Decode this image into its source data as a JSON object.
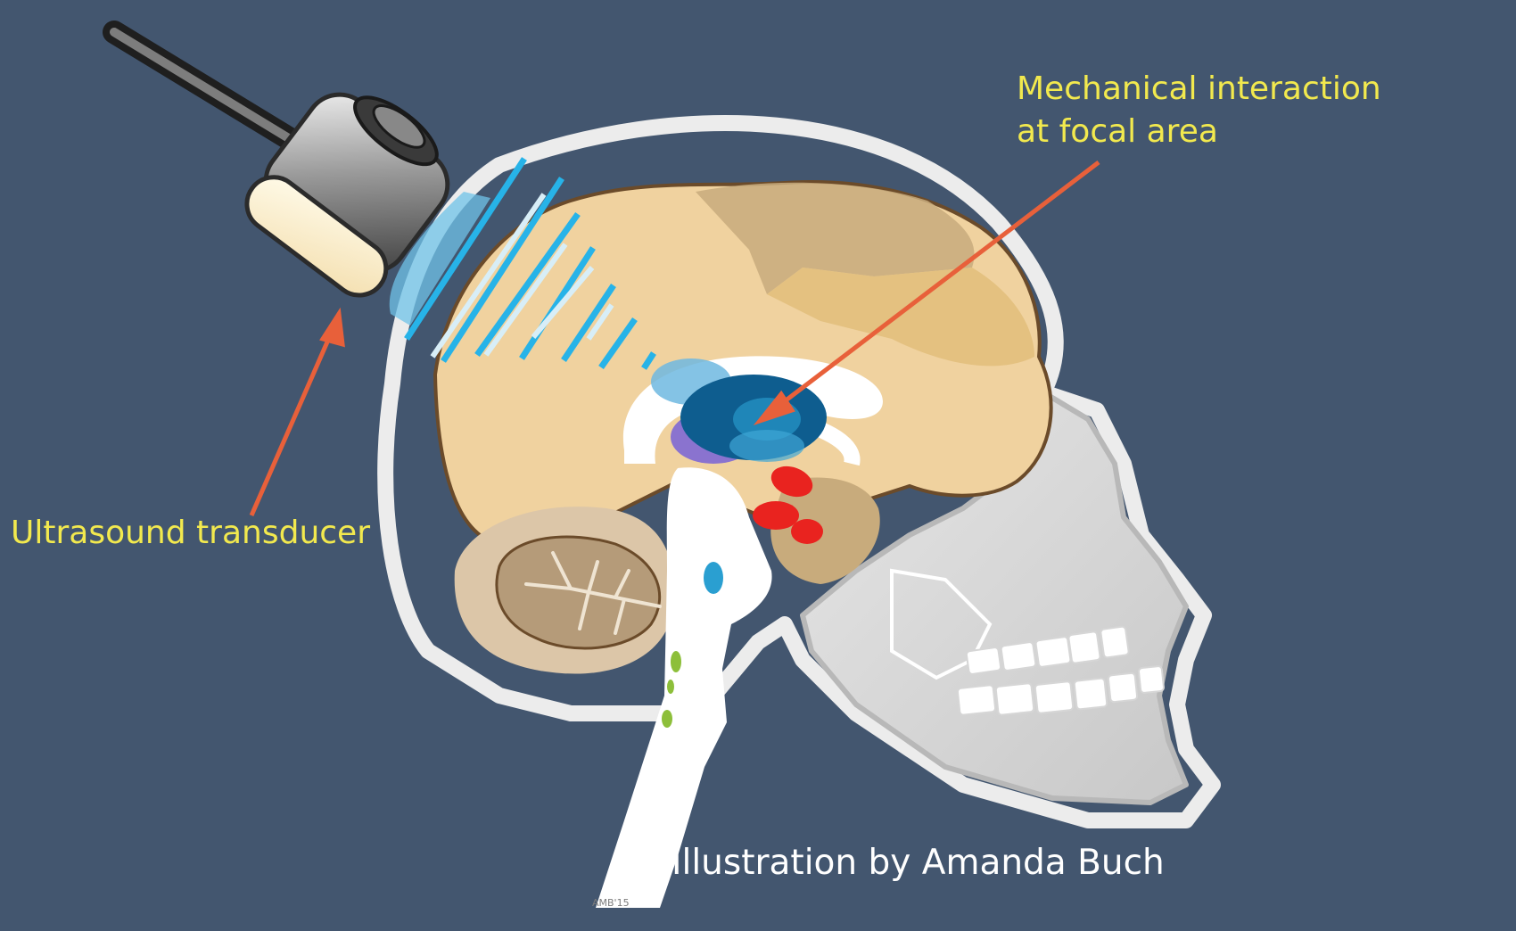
{
  "labels": {
    "focal_line1": "Mechanical interaction",
    "focal_line2": "at focal area",
    "transducer": "Ultrasound transducer",
    "credit": "Illustration by Amanda Buch"
  },
  "signature": "AMB'15",
  "colors": {
    "background": "#43566f",
    "label_text": "#f2e94e",
    "credit_text": "#ffffff",
    "arrow": "#e8603a",
    "cerebrum": "#f0d29f",
    "cerebellum": "#b59b79",
    "skull": "#d9d9d9",
    "ultrasound_wave": "#27b3e8",
    "focal_target": "#0e5d8f",
    "brainstem_nuclei": "#e9231f"
  },
  "icons": {
    "transducer": "ultrasound-transducer-icon",
    "skull": "skull-icon",
    "brain": "brain-icon"
  }
}
